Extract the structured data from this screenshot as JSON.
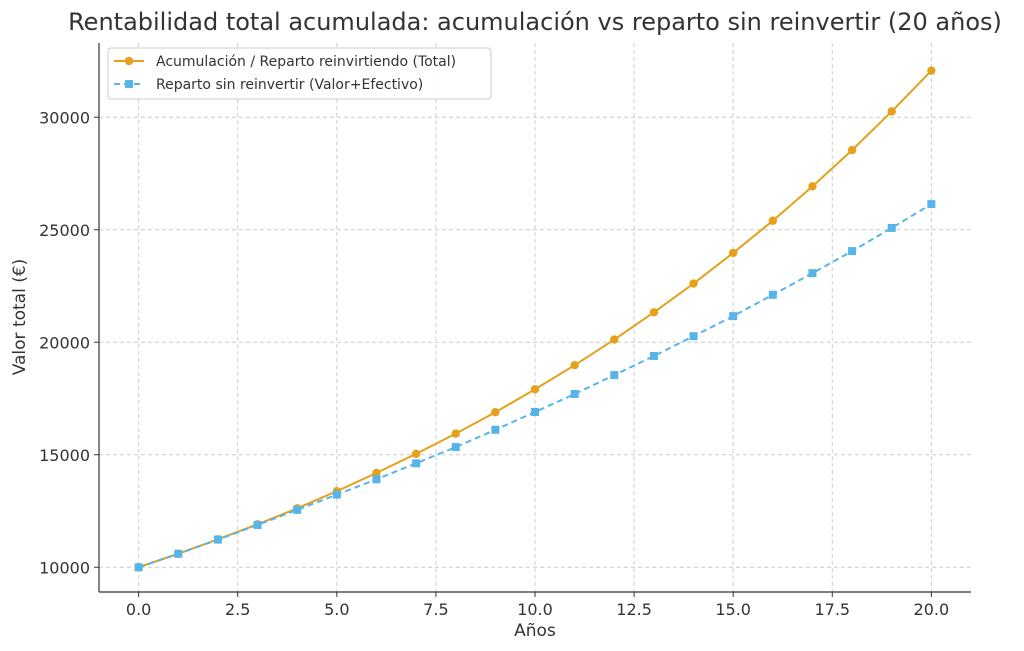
{
  "chart_data": {
    "type": "line",
    "title": "Rentabilidad total acumulada: acumulación vs reparto sin reinvertir (20 años)",
    "xlabel": "Años",
    "ylabel": "Valor total (€)",
    "xlim": [
      -1,
      21
    ],
    "ylim": [
      8900,
      33300
    ],
    "xticks": [
      0.0,
      2.5,
      5.0,
      7.5,
      10.0,
      12.5,
      15.0,
      17.5,
      20.0
    ],
    "xtick_labels": [
      "0.0",
      "2.5",
      "5.0",
      "7.5",
      "10.0",
      "12.5",
      "15.0",
      "17.5",
      "20.0"
    ],
    "yticks": [
      10000,
      15000,
      20000,
      25000,
      30000
    ],
    "ytick_labels": [
      "10000",
      "15000",
      "20000",
      "25000",
      "30000"
    ],
    "grid": true,
    "legend_position": "top-left",
    "x": [
      0,
      1,
      2,
      3,
      4,
      5,
      6,
      7,
      8,
      9,
      10,
      11,
      12,
      13,
      14,
      15,
      16,
      17,
      18,
      19,
      20
    ],
    "series": [
      {
        "name": "Acumulación / Reparto reinvirtiendo (Total)",
        "color": "#E5A11C",
        "marker": "circle",
        "linestyle": "solid",
        "values": [
          10000,
          10600,
          11240,
          11910,
          12620,
          13380,
          14190,
          15040,
          15940,
          16890,
          17910,
          18980,
          20120,
          21330,
          22610,
          23970,
          25400,
          26930,
          28540,
          30260,
          32070
        ]
      },
      {
        "name": "Reparto sin reinvertir (Valor+Efectivo)",
        "color": "#56B4E9",
        "marker": "square",
        "linestyle": "dashed",
        "values": [
          10000,
          10600,
          11230,
          11880,
          12550,
          13230,
          13910,
          14620,
          15340,
          16110,
          16900,
          17700,
          18540,
          19390,
          20270,
          21160,
          22110,
          23070,
          24050,
          25080,
          26140
        ]
      }
    ]
  }
}
